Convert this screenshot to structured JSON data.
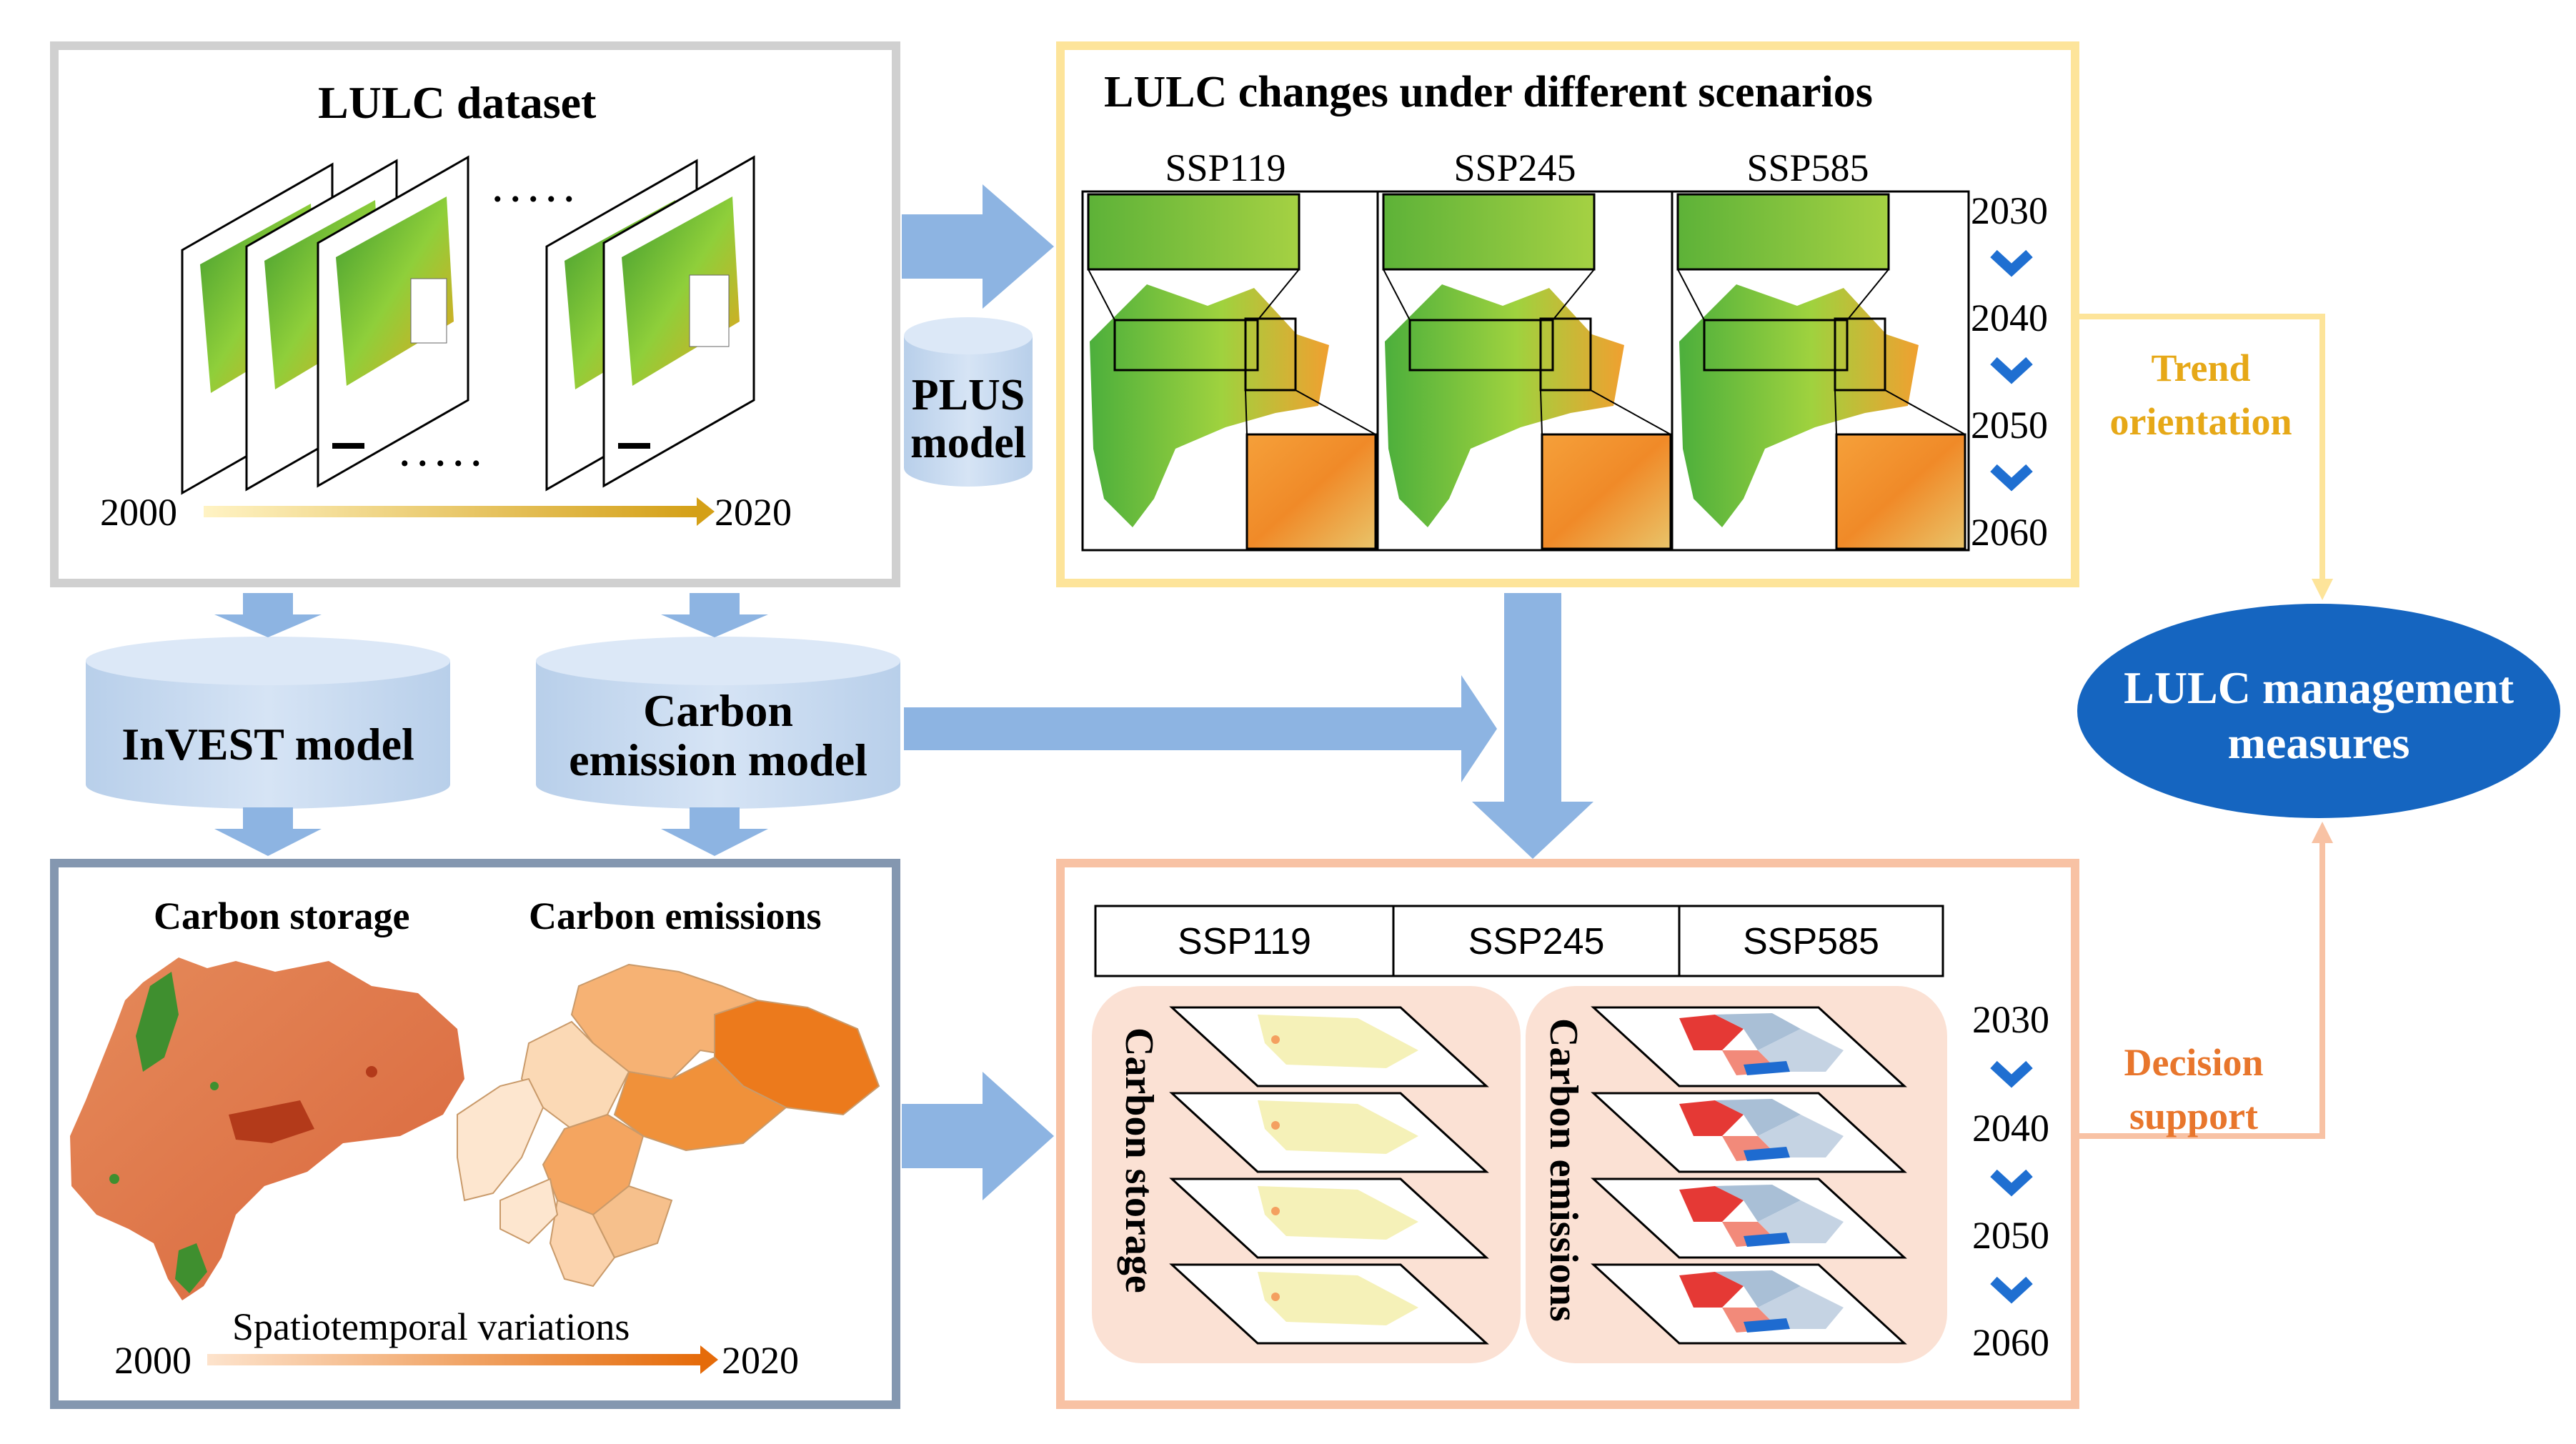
{
  "lulc_dataset": {
    "title": "LULC dataset",
    "year_start": "2000",
    "year_end": "2020",
    "ellipsis": ". . . . ."
  },
  "scenarios_panel": {
    "title": "LULC changes under different scenarios",
    "scenarios": [
      "SSP119",
      "SSP245",
      "SSP585"
    ],
    "years": [
      "2030",
      "2040",
      "2050",
      "2060"
    ]
  },
  "models": {
    "plus": "PLUS model",
    "plus_line1": "PLUS",
    "plus_line2": "model",
    "invest": "InVEST model",
    "carbon_emission_line1": "Carbon",
    "carbon_emission_line2": "emission model"
  },
  "carbon_panel": {
    "storage_title": "Carbon storage",
    "emissions_title": "Carbon emissions",
    "caption": "Spatiotemporal variations",
    "year_start": "2000",
    "year_end": "2020"
  },
  "projection_panel": {
    "scenarios": [
      "SSP119",
      "SSP245",
      "SSP585"
    ],
    "storage_label": "Carbon storage",
    "emissions_label": "Carbon emissions",
    "years": [
      "2030",
      "2040",
      "2050",
      "2060"
    ]
  },
  "management": {
    "line1": "LULC management",
    "line2": "measures"
  },
  "links": {
    "trend_line1": "Trend",
    "trend_line2": "orientation",
    "decision_line1": "Decision",
    "decision_line2": "support"
  },
  "colors": {
    "arrow": "#8db4e2",
    "cylinder": "#c5d9f1",
    "gray_border": "#d0d0d0",
    "yellow_border": "#fde49a",
    "blue_border": "#8497b0",
    "orange_border": "#f8c2a4",
    "ellipse": "#1565c0",
    "trend_text": "#e6a817",
    "decision_text": "#e8762c"
  }
}
